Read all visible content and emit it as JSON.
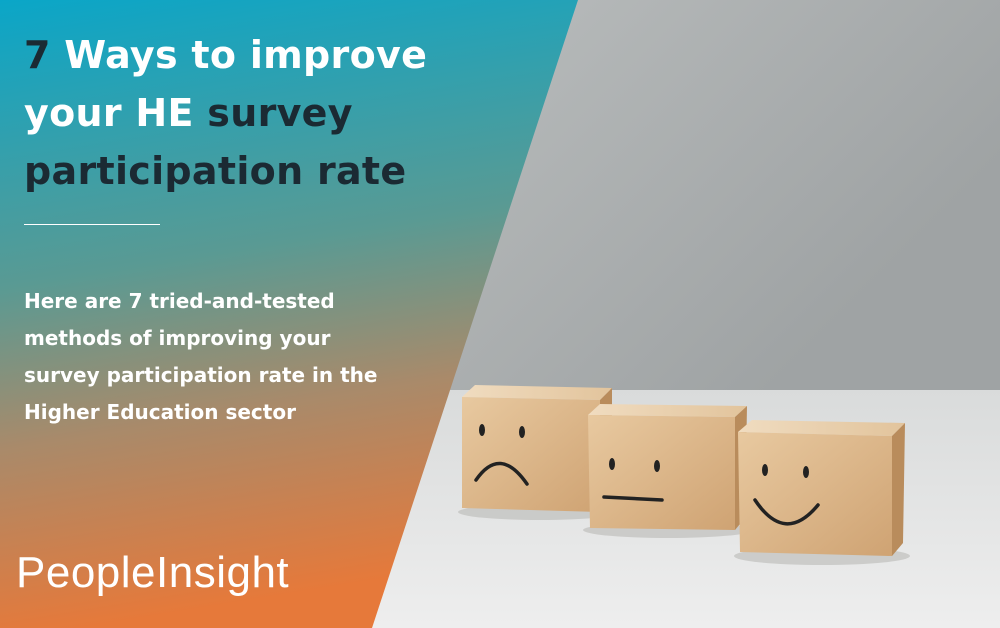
{
  "headline": [
    "7",
    "Ways to improve",
    "your HE",
    "survey",
    "participation rate"
  ],
  "description": "Here are 7 tried-and-tested methods of improving your survey participation rate in the Higher Education sector",
  "brand": "PeopleInsight"
}
